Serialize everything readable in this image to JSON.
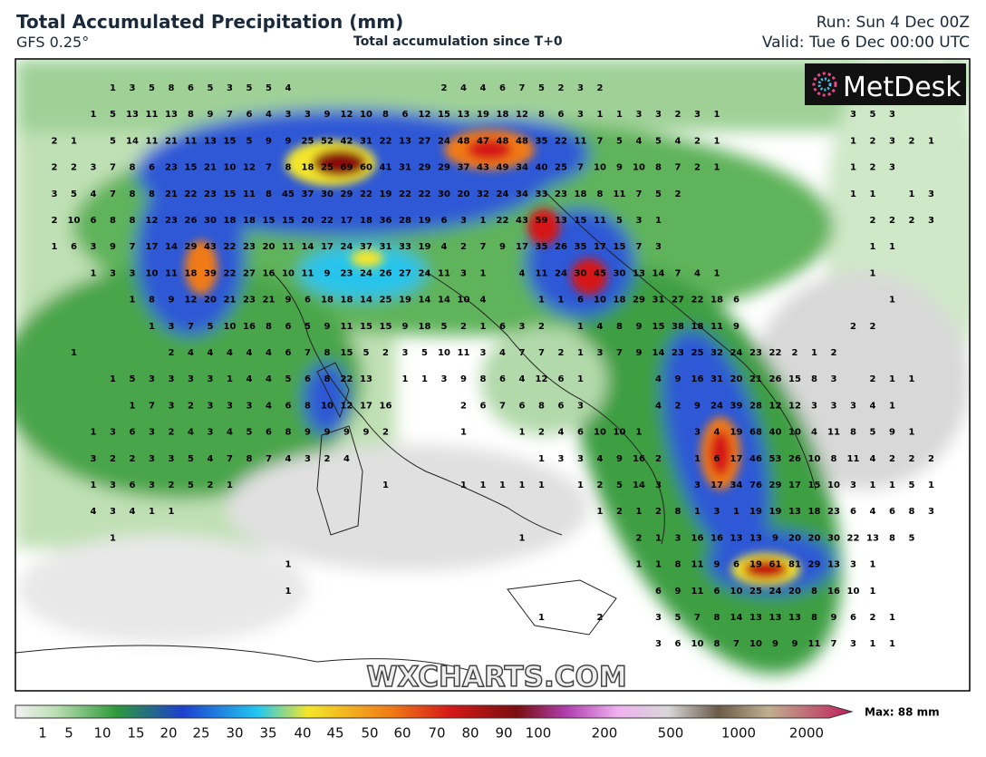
{
  "header": {
    "title": "Total Accumulated Precipitation (mm)",
    "model": "GFS 0.25°",
    "subtitle": "Total accumulation since T+0",
    "run": "Run: Sun 4 Dec 00Z",
    "valid": "Valid: Tue 6 Dec 00:00 UTC"
  },
  "logo": "MetDesk",
  "watermark": "WXCHARTS.COM",
  "grid": {
    "rows": [
      [
        null,
        null,
        null,
        1,
        3,
        5,
        8,
        6,
        5,
        3,
        5,
        5,
        4,
        null,
        null,
        null,
        null,
        null,
        null,
        null,
        2,
        4,
        4,
        6,
        7,
        5,
        2,
        3,
        2
      ],
      [
        null,
        null,
        1,
        5,
        13,
        11,
        13,
        8,
        9,
        7,
        6,
        4,
        3,
        3,
        9,
        12,
        10,
        8,
        6,
        12,
        15,
        13,
        19,
        18,
        12,
        8,
        6,
        3,
        1,
        1,
        3,
        3,
        2,
        3,
        1,
        null,
        null,
        null,
        null,
        null,
        null,
        3,
        5,
        3
      ],
      [
        2,
        1,
        null,
        5,
        14,
        11,
        21,
        11,
        13,
        15,
        5,
        9,
        9,
        25,
        52,
        42,
        31,
        22,
        13,
        27,
        24,
        48,
        47,
        48,
        48,
        35,
        22,
        11,
        7,
        5,
        4,
        5,
        4,
        2,
        1,
        null,
        null,
        null,
        null,
        null,
        null,
        1,
        2,
        3,
        2,
        1
      ],
      [
        2,
        2,
        3,
        7,
        8,
        6,
        23,
        15,
        21,
        10,
        12,
        7,
        8,
        18,
        25,
        69,
        60,
        41,
        31,
        29,
        29,
        37,
        43,
        49,
        34,
        40,
        25,
        7,
        10,
        9,
        10,
        8,
        7,
        2,
        1,
        null,
        null,
        null,
        null,
        null,
        null,
        1,
        2,
        3
      ],
      [
        3,
        5,
        4,
        7,
        8,
        8,
        21,
        22,
        23,
        15,
        11,
        8,
        45,
        37,
        30,
        29,
        22,
        19,
        22,
        22,
        30,
        20,
        32,
        24,
        34,
        33,
        23,
        18,
        8,
        11,
        7,
        5,
        2,
        null,
        null,
        null,
        null,
        null,
        null,
        null,
        null,
        1,
        1,
        null,
        1,
        3
      ],
      [
        2,
        10,
        6,
        8,
        8,
        12,
        23,
        26,
        30,
        18,
        18,
        15,
        15,
        20,
        22,
        17,
        18,
        36,
        28,
        19,
        6,
        3,
        1,
        22,
        43,
        59,
        13,
        15,
        11,
        5,
        3,
        1,
        null,
        null,
        null,
        null,
        null,
        null,
        null,
        null,
        null,
        null,
        2,
        2,
        2,
        3
      ],
      [
        1,
        6,
        3,
        9,
        7,
        17,
        14,
        29,
        43,
        22,
        23,
        20,
        11,
        14,
        17,
        24,
        37,
        31,
        33,
        19,
        4,
        2,
        7,
        9,
        17,
        35,
        26,
        35,
        17,
        15,
        7,
        3,
        null,
        null,
        null,
        null,
        null,
        null,
        null,
        null,
        null,
        null,
        1,
        1
      ],
      [
        null,
        null,
        1,
        3,
        3,
        10,
        11,
        18,
        39,
        22,
        27,
        16,
        10,
        11,
        9,
        23,
        24,
        26,
        27,
        24,
        11,
        3,
        1,
        null,
        4,
        11,
        24,
        30,
        45,
        30,
        13,
        14,
        7,
        4,
        1,
        null,
        null,
        null,
        null,
        null,
        null,
        null,
        1
      ],
      [
        null,
        null,
        null,
        null,
        1,
        8,
        9,
        12,
        20,
        21,
        23,
        21,
        9,
        6,
        18,
        18,
        14,
        25,
        19,
        14,
        14,
        10,
        4,
        null,
        null,
        1,
        1,
        6,
        10,
        18,
        29,
        31,
        27,
        22,
        18,
        6,
        null,
        null,
        null,
        null,
        null,
        null,
        null,
        1
      ],
      [
        null,
        null,
        null,
        null,
        null,
        1,
        3,
        7,
        5,
        10,
        16,
        8,
        6,
        5,
        9,
        11,
        15,
        15,
        9,
        18,
        5,
        2,
        1,
        6,
        3,
        2,
        null,
        1,
        4,
        8,
        9,
        15,
        38,
        18,
        11,
        9,
        null,
        null,
        null,
        null,
        null,
        2,
        2
      ],
      [
        null,
        1,
        null,
        null,
        null,
        null,
        2,
        4,
        4,
        4,
        4,
        4,
        6,
        7,
        8,
        15,
        5,
        2,
        3,
        5,
        10,
        11,
        3,
        4,
        7,
        7,
        2,
        1,
        3,
        7,
        9,
        14,
        23,
        25,
        32,
        24,
        23,
        22,
        2,
        1,
        2
      ],
      [
        null,
        null,
        null,
        1,
        5,
        3,
        3,
        3,
        3,
        1,
        4,
        4,
        5,
        6,
        8,
        22,
        13,
        null,
        1,
        1,
        3,
        9,
        8,
        6,
        4,
        12,
        6,
        1,
        null,
        null,
        null,
        4,
        9,
        16,
        31,
        20,
        21,
        26,
        15,
        8,
        3,
        null,
        2,
        1,
        1
      ],
      [
        null,
        null,
        null,
        null,
        1,
        7,
        3,
        2,
        3,
        3,
        3,
        4,
        6,
        8,
        10,
        12,
        17,
        16,
        null,
        null,
        null,
        2,
        6,
        7,
        6,
        8,
        6,
        3,
        null,
        null,
        null,
        4,
        2,
        9,
        24,
        39,
        28,
        12,
        12,
        3,
        3,
        3,
        4,
        1
      ],
      [
        null,
        null,
        1,
        3,
        6,
        3,
        2,
        4,
        3,
        4,
        5,
        6,
        8,
        9,
        9,
        9,
        9,
        2,
        null,
        null,
        null,
        1,
        null,
        null,
        1,
        2,
        4,
        6,
        10,
        10,
        1,
        null,
        null,
        3,
        4,
        19,
        68,
        40,
        10,
        4,
        11,
        8,
        5,
        9,
        1
      ],
      [
        null,
        null,
        3,
        2,
        2,
        3,
        3,
        5,
        4,
        7,
        8,
        7,
        4,
        3,
        2,
        4,
        null,
        null,
        null,
        null,
        null,
        null,
        null,
        null,
        null,
        1,
        3,
        3,
        4,
        9,
        16,
        2,
        null,
        1,
        6,
        17,
        46,
        53,
        26,
        10,
        8,
        11,
        4,
        2,
        2,
        2
      ],
      [
        null,
        null,
        1,
        3,
        6,
        3,
        2,
        5,
        2,
        1,
        null,
        null,
        null,
        null,
        null,
        null,
        null,
        1,
        null,
        null,
        null,
        1,
        1,
        1,
        1,
        1,
        null,
        1,
        2,
        5,
        14,
        3,
        null,
        3,
        17,
        34,
        76,
        29,
        17,
        15,
        10,
        3,
        1,
        1,
        5,
        1
      ],
      [
        null,
        null,
        4,
        3,
        4,
        1,
        1,
        null,
        null,
        null,
        null,
        null,
        null,
        null,
        null,
        null,
        null,
        null,
        null,
        null,
        null,
        null,
        null,
        null,
        null,
        null,
        null,
        null,
        1,
        2,
        1,
        2,
        8,
        1,
        3,
        1,
        19,
        19,
        13,
        18,
        23,
        6,
        4,
        6,
        8,
        3
      ],
      [
        null,
        null,
        null,
        1,
        null,
        null,
        null,
        null,
        null,
        null,
        null,
        null,
        null,
        null,
        null,
        null,
        null,
        null,
        null,
        null,
        null,
        null,
        null,
        null,
        1,
        null,
        null,
        null,
        null,
        null,
        2,
        1,
        3,
        16,
        16,
        13,
        13,
        9,
        20,
        20,
        30,
        22,
        13,
        8,
        5
      ],
      [
        null,
        null,
        null,
        null,
        null,
        null,
        null,
        null,
        null,
        null,
        null,
        null,
        1,
        null,
        null,
        null,
        null,
        null,
        null,
        null,
        null,
        null,
        null,
        null,
        null,
        null,
        null,
        null,
        null,
        null,
        1,
        1,
        8,
        11,
        9,
        6,
        19,
        61,
        81,
        29,
        13,
        3,
        1
      ],
      [
        null,
        null,
        null,
        null,
        null,
        null,
        null,
        null,
        null,
        null,
        null,
        null,
        1,
        null,
        null,
        null,
        null,
        null,
        null,
        null,
        null,
        null,
        null,
        null,
        null,
        null,
        null,
        null,
        null,
        null,
        null,
        6,
        9,
        11,
        6,
        10,
        25,
        24,
        20,
        8,
        16,
        10,
        1
      ],
      [
        null,
        null,
        null,
        null,
        null,
        null,
        null,
        null,
        null,
        null,
        null,
        null,
        null,
        null,
        null,
        null,
        null,
        null,
        null,
        null,
        null,
        null,
        null,
        null,
        null,
        1,
        null,
        null,
        2,
        null,
        null,
        3,
        5,
        7,
        8,
        14,
        13,
        13,
        13,
        8,
        9,
        6,
        2,
        1
      ],
      [
        null,
        null,
        null,
        null,
        null,
        null,
        null,
        null,
        null,
        null,
        null,
        null,
        null,
        null,
        null,
        null,
        null,
        null,
        null,
        null,
        null,
        null,
        null,
        null,
        null,
        null,
        null,
        null,
        null,
        null,
        null,
        3,
        6,
        10,
        8,
        7,
        10,
        9,
        9,
        11,
        7,
        3,
        1,
        1
      ]
    ]
  },
  "colorbar": {
    "labels": [
      1,
      5,
      10,
      15,
      20,
      25,
      30,
      35,
      40,
      45,
      50,
      60,
      70,
      80,
      90,
      100,
      200,
      500,
      1000,
      2000
    ],
    "max_label": "Max: 88 mm"
  }
}
